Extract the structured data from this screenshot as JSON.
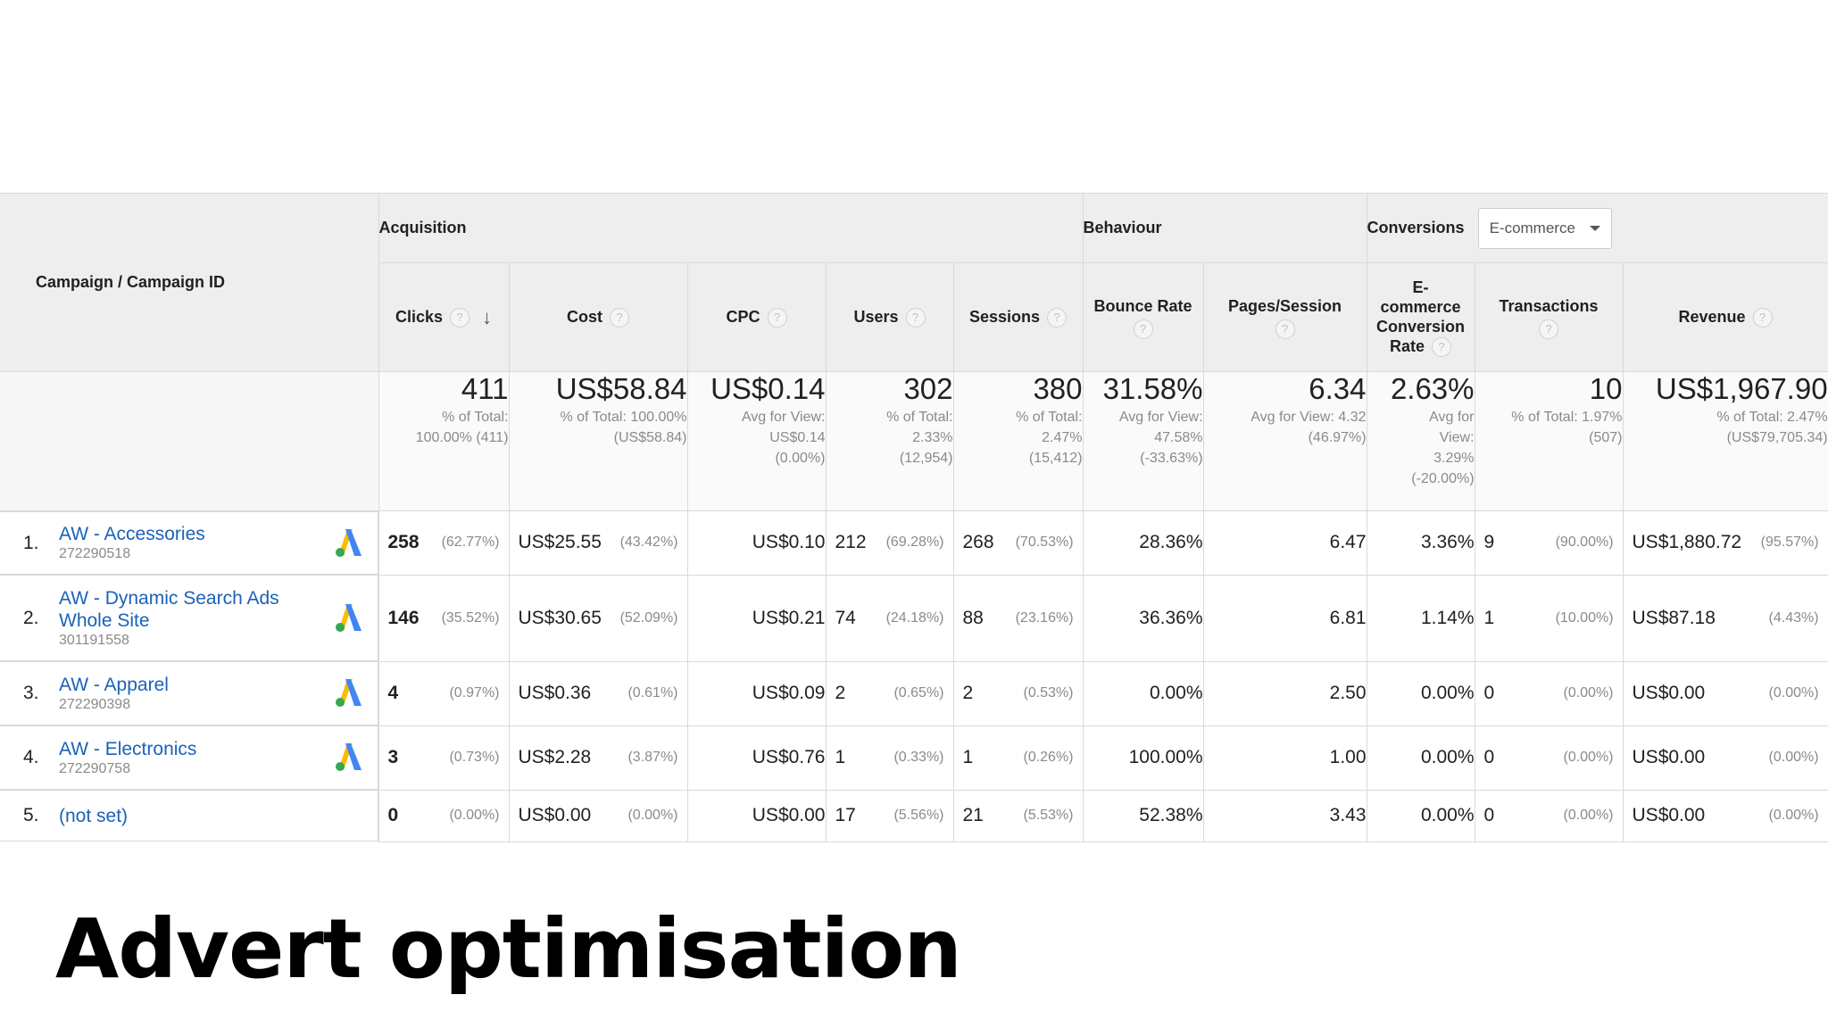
{
  "header": {
    "campaign_col": "Campaign / Campaign ID",
    "groups": [
      "Acquisition",
      "Behaviour",
      "Conversions"
    ],
    "conversions_dropdown": "E-commerce",
    "metrics": {
      "clicks": "Clicks",
      "cost": "Cost",
      "cpc": "CPC",
      "users": "Users",
      "sessions": "Sessions",
      "bounce_rate": "Bounce Rate",
      "pages_session": "Pages/Session",
      "ecommerce_line1": "E-",
      "ecommerce_line2": "commerce",
      "ecommerce_line3": "Conversion",
      "ecommerce_line4": "Rate",
      "transactions": "Transactions",
      "revenue": "Revenue"
    },
    "help_icon": "?",
    "sort_icon": "↓"
  },
  "totals": {
    "clicks": {
      "value": "411",
      "sub1": "% of Total:",
      "sub2": "100.00% (411)"
    },
    "cost": {
      "value": "US$58.84",
      "sub1": "% of Total: 100.00%",
      "sub2": "(US$58.84)"
    },
    "cpc": {
      "value": "US$0.14",
      "sub1": "Avg for View:",
      "sub2": "US$0.14",
      "sub3": "(0.00%)"
    },
    "users": {
      "value": "302",
      "sub1": "% of Total:",
      "sub2": "2.33%",
      "sub3": "(12,954)"
    },
    "sessions": {
      "value": "380",
      "sub1": "% of Total:",
      "sub2": "2.47%",
      "sub3": "(15,412)"
    },
    "bounce_rate": {
      "value": "31.58%",
      "sub1": "Avg for View:",
      "sub2": "47.58%",
      "sub3": "(-33.63%)"
    },
    "pages_session": {
      "value": "6.34",
      "sub1": "Avg for View: 4.32",
      "sub2": "(46.97%)"
    },
    "ecommerce_rate": {
      "value": "2.63%",
      "sub1": "Avg for",
      "sub2": "View:",
      "sub3": "3.29%",
      "sub4": "(-20.00%)"
    },
    "transactions": {
      "value": "10",
      "sub1": "% of Total: 1.97%",
      "sub2": "(507)"
    },
    "revenue": {
      "value": "US$1,967.90",
      "sub1": "% of Total: 2.47%",
      "sub2": "(US$79,705.34)"
    }
  },
  "rows": [
    {
      "index": "1.",
      "name": "AW - Accessories",
      "name2": "",
      "id": "272290518",
      "clicks": "258",
      "clicks_pct": "(62.77%)",
      "cost": "US$25.55",
      "cost_pct": "(43.42%)",
      "cpc": "US$0.10",
      "users": "212",
      "users_pct": "(69.28%)",
      "sessions": "268",
      "sessions_pct": "(70.53%)",
      "bounce": "28.36%",
      "pages": "6.47",
      "conv": "3.36%",
      "trans": "9",
      "trans_pct": "(90.00%)",
      "revenue": "US$1,880.72",
      "revenue_pct": "(95.57%)",
      "icon": "adwords-icon"
    },
    {
      "index": "2.",
      "name": "AW - Dynamic Search Ads",
      "name2": "Whole Site",
      "id": "301191558",
      "clicks": "146",
      "clicks_pct": "(35.52%)",
      "cost": "US$30.65",
      "cost_pct": "(52.09%)",
      "cpc": "US$0.21",
      "users": "74",
      "users_pct": "(24.18%)",
      "sessions": "88",
      "sessions_pct": "(23.16%)",
      "bounce": "36.36%",
      "pages": "6.81",
      "conv": "1.14%",
      "trans": "1",
      "trans_pct": "(10.00%)",
      "revenue": "US$87.18",
      "revenue_pct": "(4.43%)",
      "icon": "adwords-icon"
    },
    {
      "index": "3.",
      "name": "AW - Apparel",
      "name2": "",
      "id": "272290398",
      "clicks": "4",
      "clicks_pct": "(0.97%)",
      "cost": "US$0.36",
      "cost_pct": "(0.61%)",
      "cpc": "US$0.09",
      "users": "2",
      "users_pct": "(0.65%)",
      "sessions": "2",
      "sessions_pct": "(0.53%)",
      "bounce": "0.00%",
      "pages": "2.50",
      "conv": "0.00%",
      "trans": "0",
      "trans_pct": "(0.00%)",
      "revenue": "US$0.00",
      "revenue_pct": "(0.00%)",
      "icon": "adwords-icon"
    },
    {
      "index": "4.",
      "name": "AW - Electronics",
      "name2": "",
      "id": "272290758",
      "clicks": "3",
      "clicks_pct": "(0.73%)",
      "cost": "US$2.28",
      "cost_pct": "(3.87%)",
      "cpc": "US$0.76",
      "users": "1",
      "users_pct": "(0.33%)",
      "sessions": "1",
      "sessions_pct": "(0.26%)",
      "bounce": "100.00%",
      "pages": "1.00",
      "conv": "0.00%",
      "trans": "0",
      "trans_pct": "(0.00%)",
      "revenue": "US$0.00",
      "revenue_pct": "(0.00%)",
      "icon": "adwords-icon"
    },
    {
      "index": "5.",
      "name": "(not set)",
      "name2": "",
      "id": "",
      "clicks": "0",
      "clicks_pct": "(0.00%)",
      "cost": "US$0.00",
      "cost_pct": "(0.00%)",
      "cpc": "US$0.00",
      "users": "17",
      "users_pct": "(5.56%)",
      "sessions": "21",
      "sessions_pct": "(5.53%)",
      "bounce": "52.38%",
      "pages": "3.43",
      "conv": "0.00%",
      "trans": "0",
      "trans_pct": "(0.00%)",
      "revenue": "US$0.00",
      "revenue_pct": "(0.00%)",
      "icon": ""
    }
  ],
  "slide_title": "Advert optimisation",
  "colors": {
    "link": "#1a62b8",
    "header_bg": "#eeeeee",
    "adwords_blue": "#4285f4",
    "adwords_green": "#34a853",
    "adwords_yellow": "#fbbc04"
  }
}
